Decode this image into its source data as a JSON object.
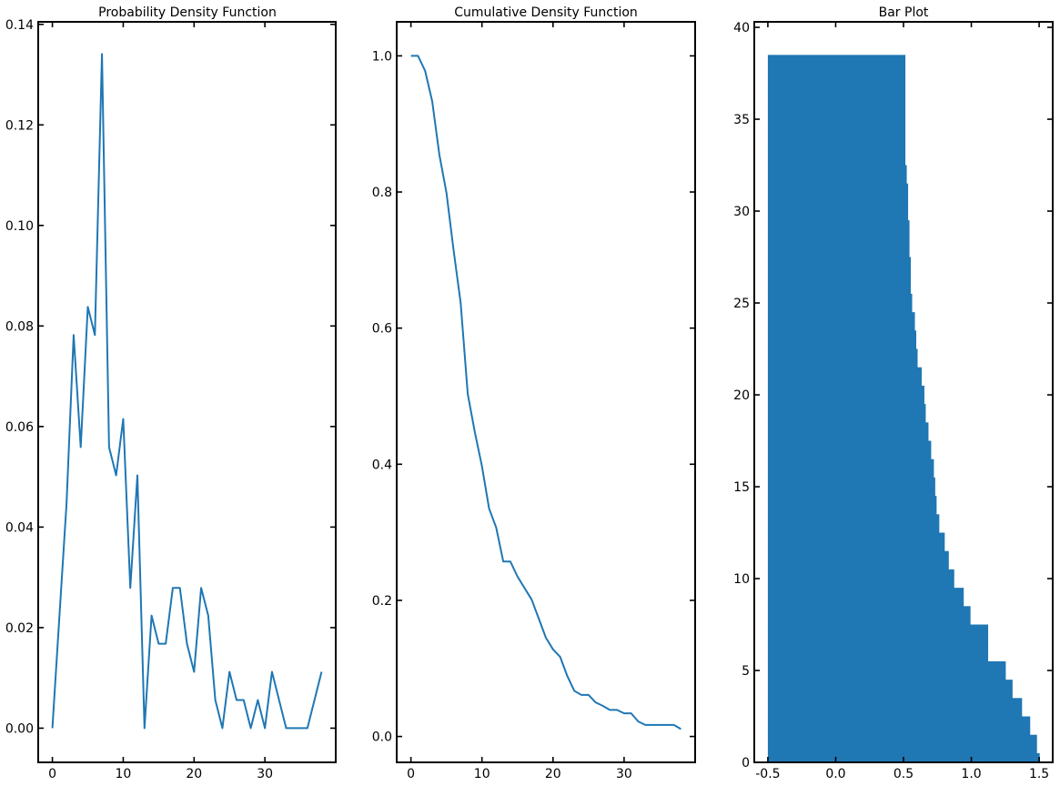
{
  "chart_data": [
    {
      "type": "line",
      "title": "Probability Density Function",
      "xlabel": "",
      "ylabel": "",
      "xlim": [
        -2,
        40
      ],
      "ylim": [
        -0.0068,
        0.1405
      ],
      "xticks": [
        0,
        10,
        20,
        30
      ],
      "xtick_labels": [
        "0",
        "10",
        "20",
        "30"
      ],
      "yticks": [
        0.0,
        0.02,
        0.04,
        0.06,
        0.08,
        0.1,
        0.12,
        0.14
      ],
      "ytick_labels": [
        "0.00",
        "0.02",
        "0.04",
        "0.06",
        "0.08",
        "0.10",
        "0.12",
        "0.14"
      ],
      "grid": false,
      "color": "#1f77b4",
      "x": [
        0,
        1,
        2,
        3,
        4,
        5,
        6,
        7,
        8,
        9,
        10,
        11,
        12,
        13,
        14,
        15,
        16,
        17,
        18,
        19,
        20,
        21,
        22,
        23,
        24,
        25,
        26,
        27,
        28,
        29,
        30,
        31,
        32,
        33,
        34,
        35,
        36,
        37,
        38
      ],
      "y": [
        0.0,
        0.0224,
        0.0447,
        0.0782,
        0.0559,
        0.0838,
        0.0782,
        0.1341,
        0.0559,
        0.0503,
        0.0615,
        0.0279,
        0.0503,
        0.0,
        0.0224,
        0.0168,
        0.0168,
        0.0279,
        0.0279,
        0.0168,
        0.0112,
        0.0279,
        0.0224,
        0.0056,
        0.0,
        0.0112,
        0.0056,
        0.0056,
        0.0,
        0.0056,
        0.0,
        0.0112,
        0.0056,
        0.0,
        0.0,
        0.0,
        0.0,
        0.0056,
        0.0112
      ]
    },
    {
      "type": "line",
      "title": "Cumulative Density Function",
      "xlabel": "",
      "ylabel": "",
      "xlim": [
        -2,
        40
      ],
      "ylim": [
        -0.038,
        1.05
      ],
      "xticks": [
        0,
        10,
        20,
        30
      ],
      "xtick_labels": [
        "0",
        "10",
        "20",
        "30"
      ],
      "yticks": [
        0.0,
        0.2,
        0.4,
        0.6,
        0.8,
        1.0
      ],
      "ytick_labels": [
        "0.0",
        "0.2",
        "0.4",
        "0.6",
        "0.8",
        "1.0"
      ],
      "grid": false,
      "color": "#1f77b4",
      "x": [
        0,
        1,
        2,
        3,
        4,
        5,
        6,
        7,
        8,
        9,
        10,
        11,
        12,
        13,
        14,
        15,
        16,
        17,
        18,
        19,
        20,
        21,
        22,
        23,
        24,
        25,
        26,
        27,
        28,
        29,
        30,
        31,
        32,
        33,
        34,
        35,
        36,
        37,
        38
      ],
      "y": [
        1.0,
        1.0,
        0.978,
        0.933,
        0.855,
        0.799,
        0.715,
        0.637,
        0.503,
        0.447,
        0.397,
        0.335,
        0.307,
        0.257,
        0.257,
        0.235,
        0.218,
        0.201,
        0.173,
        0.145,
        0.128,
        0.117,
        0.089,
        0.067,
        0.061,
        0.061,
        0.05,
        0.045,
        0.039,
        0.039,
        0.034,
        0.034,
        0.022,
        0.017,
        0.017,
        0.017,
        0.017,
        0.017,
        0.011
      ]
    },
    {
      "type": "bar",
      "orientation": "horizontal",
      "title": "Bar Plot",
      "xlabel": "",
      "ylabel": "",
      "xlim": [
        -0.6,
        1.6
      ],
      "ylim": [
        0,
        40.3
      ],
      "xticks": [
        -0.5,
        0.0,
        0.5,
        1.0,
        1.5
      ],
      "xtick_labels": [
        "-0.5",
        "0.0",
        "0.5",
        "1.0",
        "1.5"
      ],
      "yticks": [
        0,
        5,
        10,
        15,
        20,
        25,
        30,
        35,
        40
      ],
      "ytick_labels": [
        "0",
        "5",
        "10",
        "15",
        "20",
        "25",
        "30",
        "35",
        "40"
      ],
      "grid": false,
      "color": "#1f77b4",
      "bar_left": -0.5,
      "bar_height": 1,
      "y": [
        0,
        1,
        2,
        3,
        4,
        5,
        6,
        7,
        8,
        9,
        10,
        11,
        12,
        13,
        14,
        15,
        16,
        17,
        18,
        19,
        20,
        21,
        22,
        23,
        24,
        25,
        26,
        27,
        28,
        29,
        30,
        31,
        32,
        33,
        34,
        35,
        36,
        37,
        38
      ],
      "x_end": [
        1.5,
        1.48,
        1.43,
        1.37,
        1.3,
        1.25,
        1.12,
        1.12,
        0.99,
        0.94,
        0.87,
        0.83,
        0.8,
        0.76,
        0.74,
        0.73,
        0.72,
        0.7,
        0.68,
        0.66,
        0.65,
        0.63,
        0.6,
        0.59,
        0.58,
        0.56,
        0.55,
        0.55,
        0.54,
        0.54,
        0.53,
        0.53,
        0.52,
        0.51,
        0.51,
        0.51,
        0.51,
        0.51,
        0.51
      ]
    }
  ]
}
